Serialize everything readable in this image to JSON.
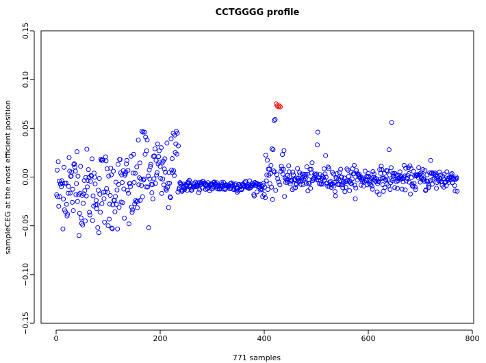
{
  "chart_data": {
    "type": "scatter",
    "title": "CCTGGGG profile",
    "xlabel": "771 samples",
    "ylabel": "sampleCEG at the most efficient position",
    "xlim": [
      -30,
      800
    ],
    "ylim": [
      -0.15,
      0.15
    ],
    "x_ticks": [
      0,
      200,
      400,
      600,
      800
    ],
    "y_ticks": [
      -0.15,
      -0.1,
      -0.05,
      0.0,
      0.05,
      0.1,
      0.15
    ],
    "x_tick_labels": [
      "0",
      "200",
      "400",
      "600",
      "800"
    ],
    "y_tick_labels": [
      "−0.15",
      "−0.10",
      "−0.05",
      "0.00",
      "0.05",
      "0.10",
      "0.15"
    ],
    "grid": false,
    "legend": "none",
    "marker": "open-circle",
    "colors": {
      "normal": "#0000ff",
      "highlight": "#ff0000"
    },
    "highlight_points": [
      {
        "x": 423,
        "y": 0.075
      },
      {
        "x": 425,
        "y": 0.073
      },
      {
        "x": 427,
        "y": 0.072
      },
      {
        "x": 429,
        "y": 0.073
      },
      {
        "x": 431,
        "y": 0.072
      }
    ],
    "series": [
      {
        "segments": [
          {
            "x_start": 1,
            "x_end": 160,
            "mean": -0.012,
            "spread": 0.02
          },
          {
            "x_start": 161,
            "x_end": 235,
            "mean": 0.0,
            "spread": 0.018
          },
          {
            "x_start": 236,
            "x_end": 400,
            "mean": -0.009,
            "spread": 0.003
          },
          {
            "x_start": 401,
            "x_end": 440,
            "mean": 0.0,
            "spread": 0.01
          },
          {
            "x_start": 441,
            "x_end": 771,
            "mean": -0.002,
            "spread": 0.006
          }
        ],
        "points": [
          {
            "x": 5,
            "y": -0.03
          },
          {
            "x": 8,
            "y": -0.007
          },
          {
            "x": 15,
            "y": 0.01
          },
          {
            "x": 22,
            "y": -0.038
          },
          {
            "x": 25,
            "y": 0.02
          },
          {
            "x": 40,
            "y": 0.026
          },
          {
            "x": 48,
            "y": -0.042
          },
          {
            "x": 82,
            "y": -0.057
          },
          {
            "x": 100,
            "y": -0.05
          },
          {
            "x": 108,
            "y": -0.053
          },
          {
            "x": 110,
            "y": 0.006
          },
          {
            "x": 140,
            "y": -0.048
          },
          {
            "x": 165,
            "y": 0.047
          },
          {
            "x": 167,
            "y": 0.046
          },
          {
            "x": 170,
            "y": 0.046
          },
          {
            "x": 172,
            "y": 0.041
          },
          {
            "x": 178,
            "y": -0.052
          },
          {
            "x": 182,
            "y": 0.013
          },
          {
            "x": 190,
            "y": 0.029
          },
          {
            "x": 195,
            "y": 0.034
          },
          {
            "x": 197,
            "y": 0.021
          },
          {
            "x": 200,
            "y": 0.011
          },
          {
            "x": 210,
            "y": 0.005
          },
          {
            "x": 225,
            "y": 0.045
          },
          {
            "x": 228,
            "y": 0.043
          },
          {
            "x": 230,
            "y": 0.034
          },
          {
            "x": 231,
            "y": 0.047
          },
          {
            "x": 233,
            "y": 0.045
          },
          {
            "x": 235,
            "y": 0.032
          },
          {
            "x": 380,
            "y": -0.018
          },
          {
            "x": 397,
            "y": -0.02
          },
          {
            "x": 400,
            "y": -0.018
          },
          {
            "x": 405,
            "y": 0.002
          },
          {
            "x": 410,
            "y": 0.008
          },
          {
            "x": 413,
            "y": 0.012
          },
          {
            "x": 415,
            "y": 0.029
          },
          {
            "x": 417,
            "y": 0.028
          },
          {
            "x": 419,
            "y": 0.058
          },
          {
            "x": 421,
            "y": 0.059
          },
          {
            "x": 430,
            "y": -0.008
          },
          {
            "x": 503,
            "y": 0.046
          },
          {
            "x": 502,
            "y": 0.033
          },
          {
            "x": 518,
            "y": 0.022
          },
          {
            "x": 640,
            "y": 0.028
          },
          {
            "x": 645,
            "y": 0.056
          },
          {
            "x": 720,
            "y": 0.017
          },
          {
            "x": 555,
            "y": -0.015
          }
        ]
      }
    ]
  }
}
